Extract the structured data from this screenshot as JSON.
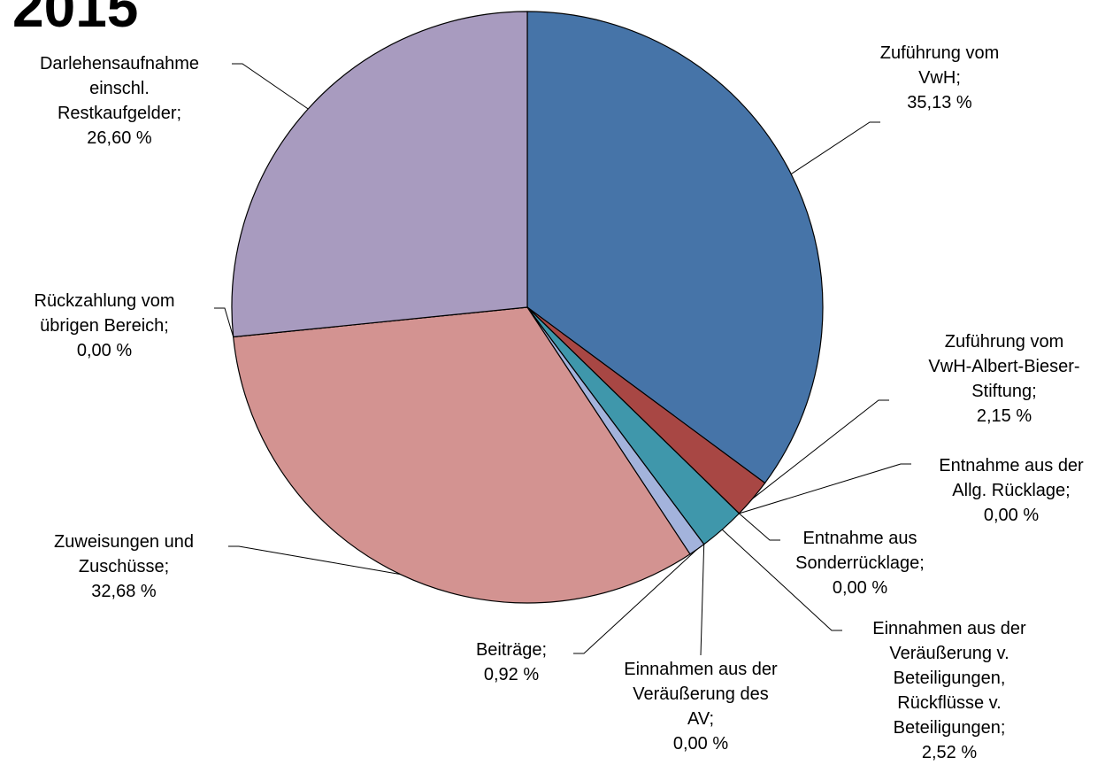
{
  "chart_data": {
    "type": "pie",
    "title": "2015",
    "categories": [
      "Zuführung vom\nVwH;",
      "Zuführung vom\nVwH-Albert-Bieser-\nStiftung;",
      "Entnahme aus der\nAllg. Rücklage;",
      "Entnahme aus\nSonderrücklage;",
      "Einnahmen aus der\nVeräußerung v.\nBeteiligungen,\nRückflüsse v.\nBeteiligungen;",
      "Einnahmen aus der\nVeräußerung des\nAV;",
      "Beiträge;",
      "Zuweisungen und\nZuschüsse;",
      "Rückzahlung vom\nübrigen Bereich;",
      "Darlehensaufnahme\neinschl.\nRestkaufgelder;"
    ],
    "values": [
      35.13,
      2.15,
      0.0,
      0.0,
      2.52,
      0.0,
      0.92,
      32.68,
      0.0,
      26.6
    ],
    "value_labels": [
      "35,13 %",
      "2,15 %",
      "0,00 %",
      "0,00 %",
      "2,52 %",
      "0,00 %",
      "0,92 %",
      "32,68 %",
      "0,00 %",
      "26,60 %"
    ],
    "colors": [
      "#4674a8",
      "#a84744",
      "#8aa84a",
      "#7a5c9c",
      "#3f97ab",
      "#e0913f",
      "#a3b3dc",
      "#d39391",
      "#b9cc91",
      "#a89bbf"
    ]
  }
}
